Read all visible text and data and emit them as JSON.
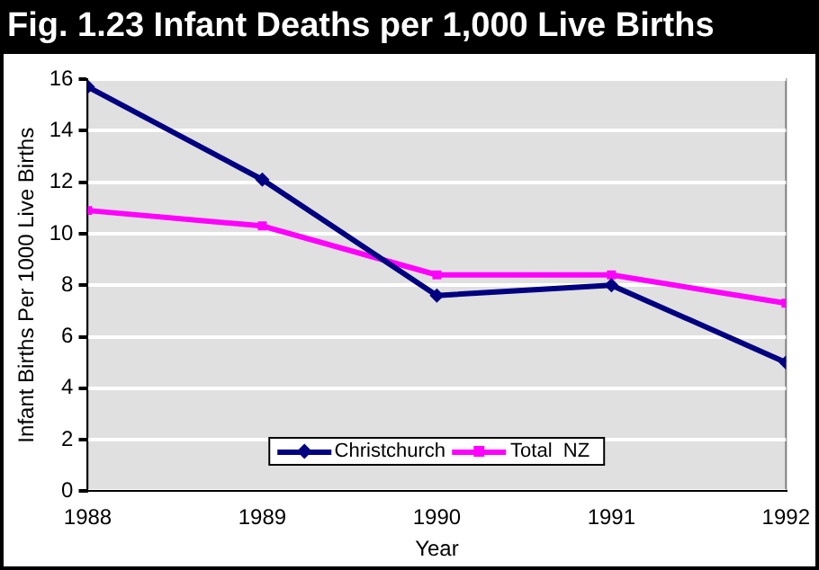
{
  "chart_data": {
    "type": "line",
    "title": "Fig. 1.23 Infant Deaths per 1,000 Live Births",
    "xlabel": "Year",
    "ylabel": "Infant Births Per 1000 Live Births",
    "x": [
      1988,
      1989,
      1990,
      1991,
      1992
    ],
    "series": [
      {
        "name": "Christchurch",
        "color": "#000080",
        "marker": "diamond",
        "values": [
          15.7,
          12.1,
          7.6,
          8.0,
          5.0
        ]
      },
      {
        "name": "Total  NZ",
        "color": "#ff00ff",
        "marker": "square",
        "values": [
          10.9,
          10.3,
          8.4,
          8.4,
          7.3
        ]
      }
    ],
    "xlim": [
      1988,
      1992
    ],
    "xticks": [
      1988,
      1989,
      1990,
      1991,
      1992
    ],
    "ylim": [
      0,
      16
    ],
    "yticks": [
      0,
      2,
      4,
      6,
      8,
      10,
      12,
      14,
      16
    ],
    "grid": "y",
    "legend": "bottom"
  }
}
